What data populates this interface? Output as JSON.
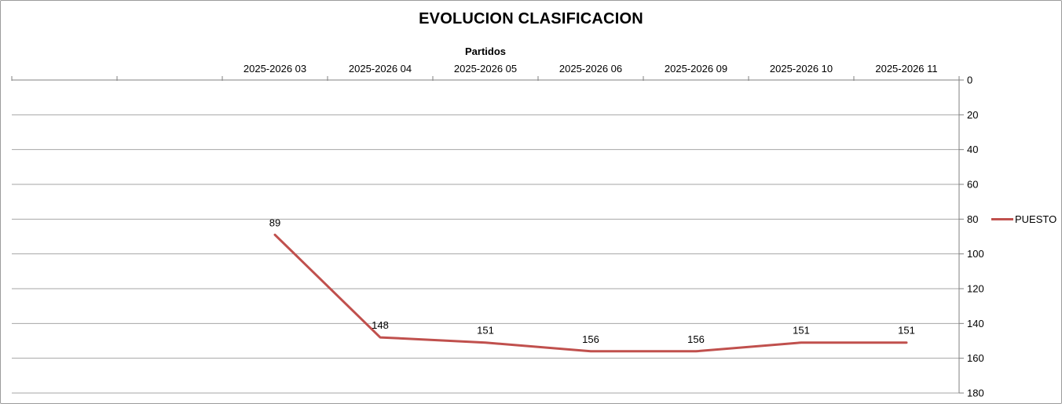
{
  "chart_data": {
    "type": "line",
    "title": "EVOLUCION CLASIFICACION",
    "x_axis_title": "Partidos",
    "categories": [
      "",
      "",
      "2025-2026 03",
      "2025-2026 04",
      "2025-2026 05",
      "2025-2026 06",
      "2025-2026 09",
      "2025-2026 10",
      "2025-2026 11"
    ],
    "series": [
      {
        "name": "PUESTO",
        "color": "#c0504d",
        "values": [
          null,
          null,
          89,
          148,
          151,
          156,
          156,
          151,
          151
        ]
      }
    ],
    "data_labels": [
      null,
      null,
      "89",
      "148",
      "151",
      "156",
      "156",
      "151",
      "151"
    ],
    "y_axis": {
      "min": 0,
      "max": 180,
      "step": 20,
      "reversed": true,
      "side": "right",
      "tick_labels": [
        "0",
        "20",
        "40",
        "60",
        "80",
        "100",
        "120",
        "140",
        "160",
        "180"
      ]
    },
    "legend": {
      "position": "right",
      "entries": [
        "PUESTO"
      ]
    },
    "grid": "horizontal",
    "colors": {
      "series_red": "#c0504d",
      "gridline": "#a6a6a6",
      "axis": "#808080",
      "text": "#000000"
    }
  }
}
